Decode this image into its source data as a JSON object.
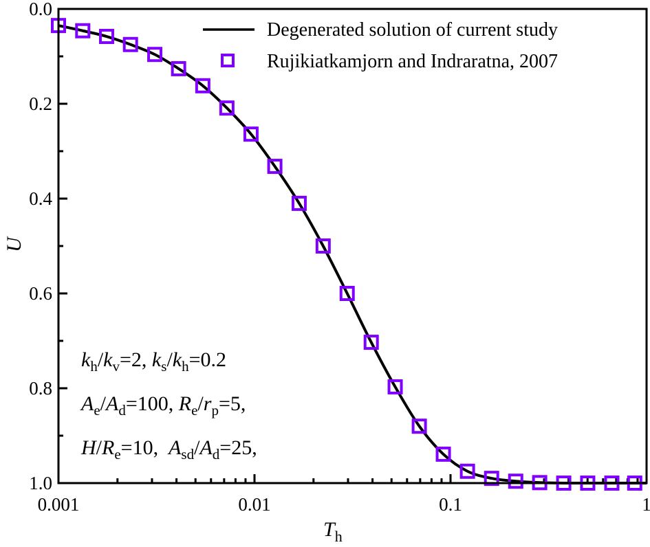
{
  "chart_data": {
    "type": "line",
    "xscale": "log",
    "xlim": [
      0.001,
      1
    ],
    "ylim": [
      0.0,
      1.0
    ],
    "y_inverted": true,
    "xlabel": {
      "main": "T",
      "sub": "h"
    },
    "ylabel": "U",
    "xticks": [
      {
        "value": 0.001,
        "label": "0.001"
      },
      {
        "value": 0.01,
        "label": "0.01"
      },
      {
        "value": 0.1,
        "label": "0.1"
      },
      {
        "value": 1,
        "label": "1"
      }
    ],
    "yticks": [
      {
        "value": 0.0,
        "label": "0.0"
      },
      {
        "value": 0.2,
        "label": "0.2"
      },
      {
        "value": 0.4,
        "label": "0.4"
      },
      {
        "value": 0.6,
        "label": "0.6"
      },
      {
        "value": 0.8,
        "label": "0.8"
      },
      {
        "value": 1.0,
        "label": "1.0"
      }
    ],
    "grid": false,
    "legend_position": "top-right",
    "series": [
      {
        "name": "Degenerated solution of current study",
        "kind": "line",
        "color": "#000000",
        "x": [
          0.001,
          0.00133,
          0.00176,
          0.00233,
          0.0031,
          0.0041,
          0.00545,
          0.00723,
          0.0096,
          0.0127,
          0.0169,
          0.0224,
          0.0297,
          0.0394,
          0.0522,
          0.0693,
          0.0919,
          0.122,
          0.162,
          0.215,
          0.285,
          0.378,
          0.501,
          0.665,
          0.87
        ],
        "y": [
          0.035,
          0.046,
          0.058,
          0.075,
          0.096,
          0.126,
          0.162,
          0.209,
          0.264,
          0.332,
          0.41,
          0.5,
          0.6,
          0.703,
          0.797,
          0.88,
          0.939,
          0.975,
          0.99,
          0.996,
          0.999,
          1.0,
          1.0,
          1.0,
          1.0
        ]
      },
      {
        "name": "Rujikiatkamjorn and Indraratna, 2007",
        "kind": "scatter",
        "marker": "open-square",
        "color": "#8000ff",
        "x": [
          0.001,
          0.00133,
          0.00176,
          0.00233,
          0.0031,
          0.0041,
          0.00545,
          0.00723,
          0.0096,
          0.0127,
          0.0169,
          0.0224,
          0.0297,
          0.0394,
          0.0522,
          0.0693,
          0.0919,
          0.122,
          0.162,
          0.215,
          0.285,
          0.378,
          0.501,
          0.665,
          0.87
        ],
        "y": [
          0.035,
          0.046,
          0.058,
          0.075,
          0.096,
          0.126,
          0.162,
          0.209,
          0.264,
          0.332,
          0.41,
          0.5,
          0.6,
          0.703,
          0.797,
          0.88,
          0.939,
          0.975,
          0.99,
          0.996,
          0.999,
          1.0,
          1.0,
          1.0,
          1.0
        ]
      }
    ],
    "annotations": [
      [
        {
          "t": "k",
          "i": 1
        },
        {
          "t": "h",
          "s": 1
        },
        {
          "t": "/"
        },
        {
          "t": "k",
          "i": 1
        },
        {
          "t": "v",
          "s": 1
        },
        {
          "t": "=2, "
        },
        {
          "t": "k",
          "i": 1
        },
        {
          "t": "s",
          "s": 1
        },
        {
          "t": "/"
        },
        {
          "t": "k",
          "i": 1
        },
        {
          "t": "h",
          "s": 1
        },
        {
          "t": "=0.2"
        }
      ],
      [
        {
          "t": "A",
          "i": 1
        },
        {
          "t": "e",
          "s": 1
        },
        {
          "t": "/"
        },
        {
          "t": "A",
          "i": 1
        },
        {
          "t": "d",
          "s": 1
        },
        {
          "t": "=100, "
        },
        {
          "t": "R",
          "i": 1
        },
        {
          "t": "e",
          "s": 1
        },
        {
          "t": "/"
        },
        {
          "t": "r",
          "i": 1
        },
        {
          "t": "p",
          "s": 1
        },
        {
          "t": "=5,"
        }
      ],
      [
        {
          "t": "H",
          "i": 1
        },
        {
          "t": "/"
        },
        {
          "t": "R",
          "i": 1
        },
        {
          "t": "e",
          "s": 1
        },
        {
          "t": "=10,  "
        },
        {
          "t": "A",
          "i": 1
        },
        {
          "t": "sd",
          "s": 1
        },
        {
          "t": "/"
        },
        {
          "t": "A",
          "i": 1
        },
        {
          "t": "d",
          "s": 1
        },
        {
          "t": "=25,"
        }
      ]
    ]
  }
}
